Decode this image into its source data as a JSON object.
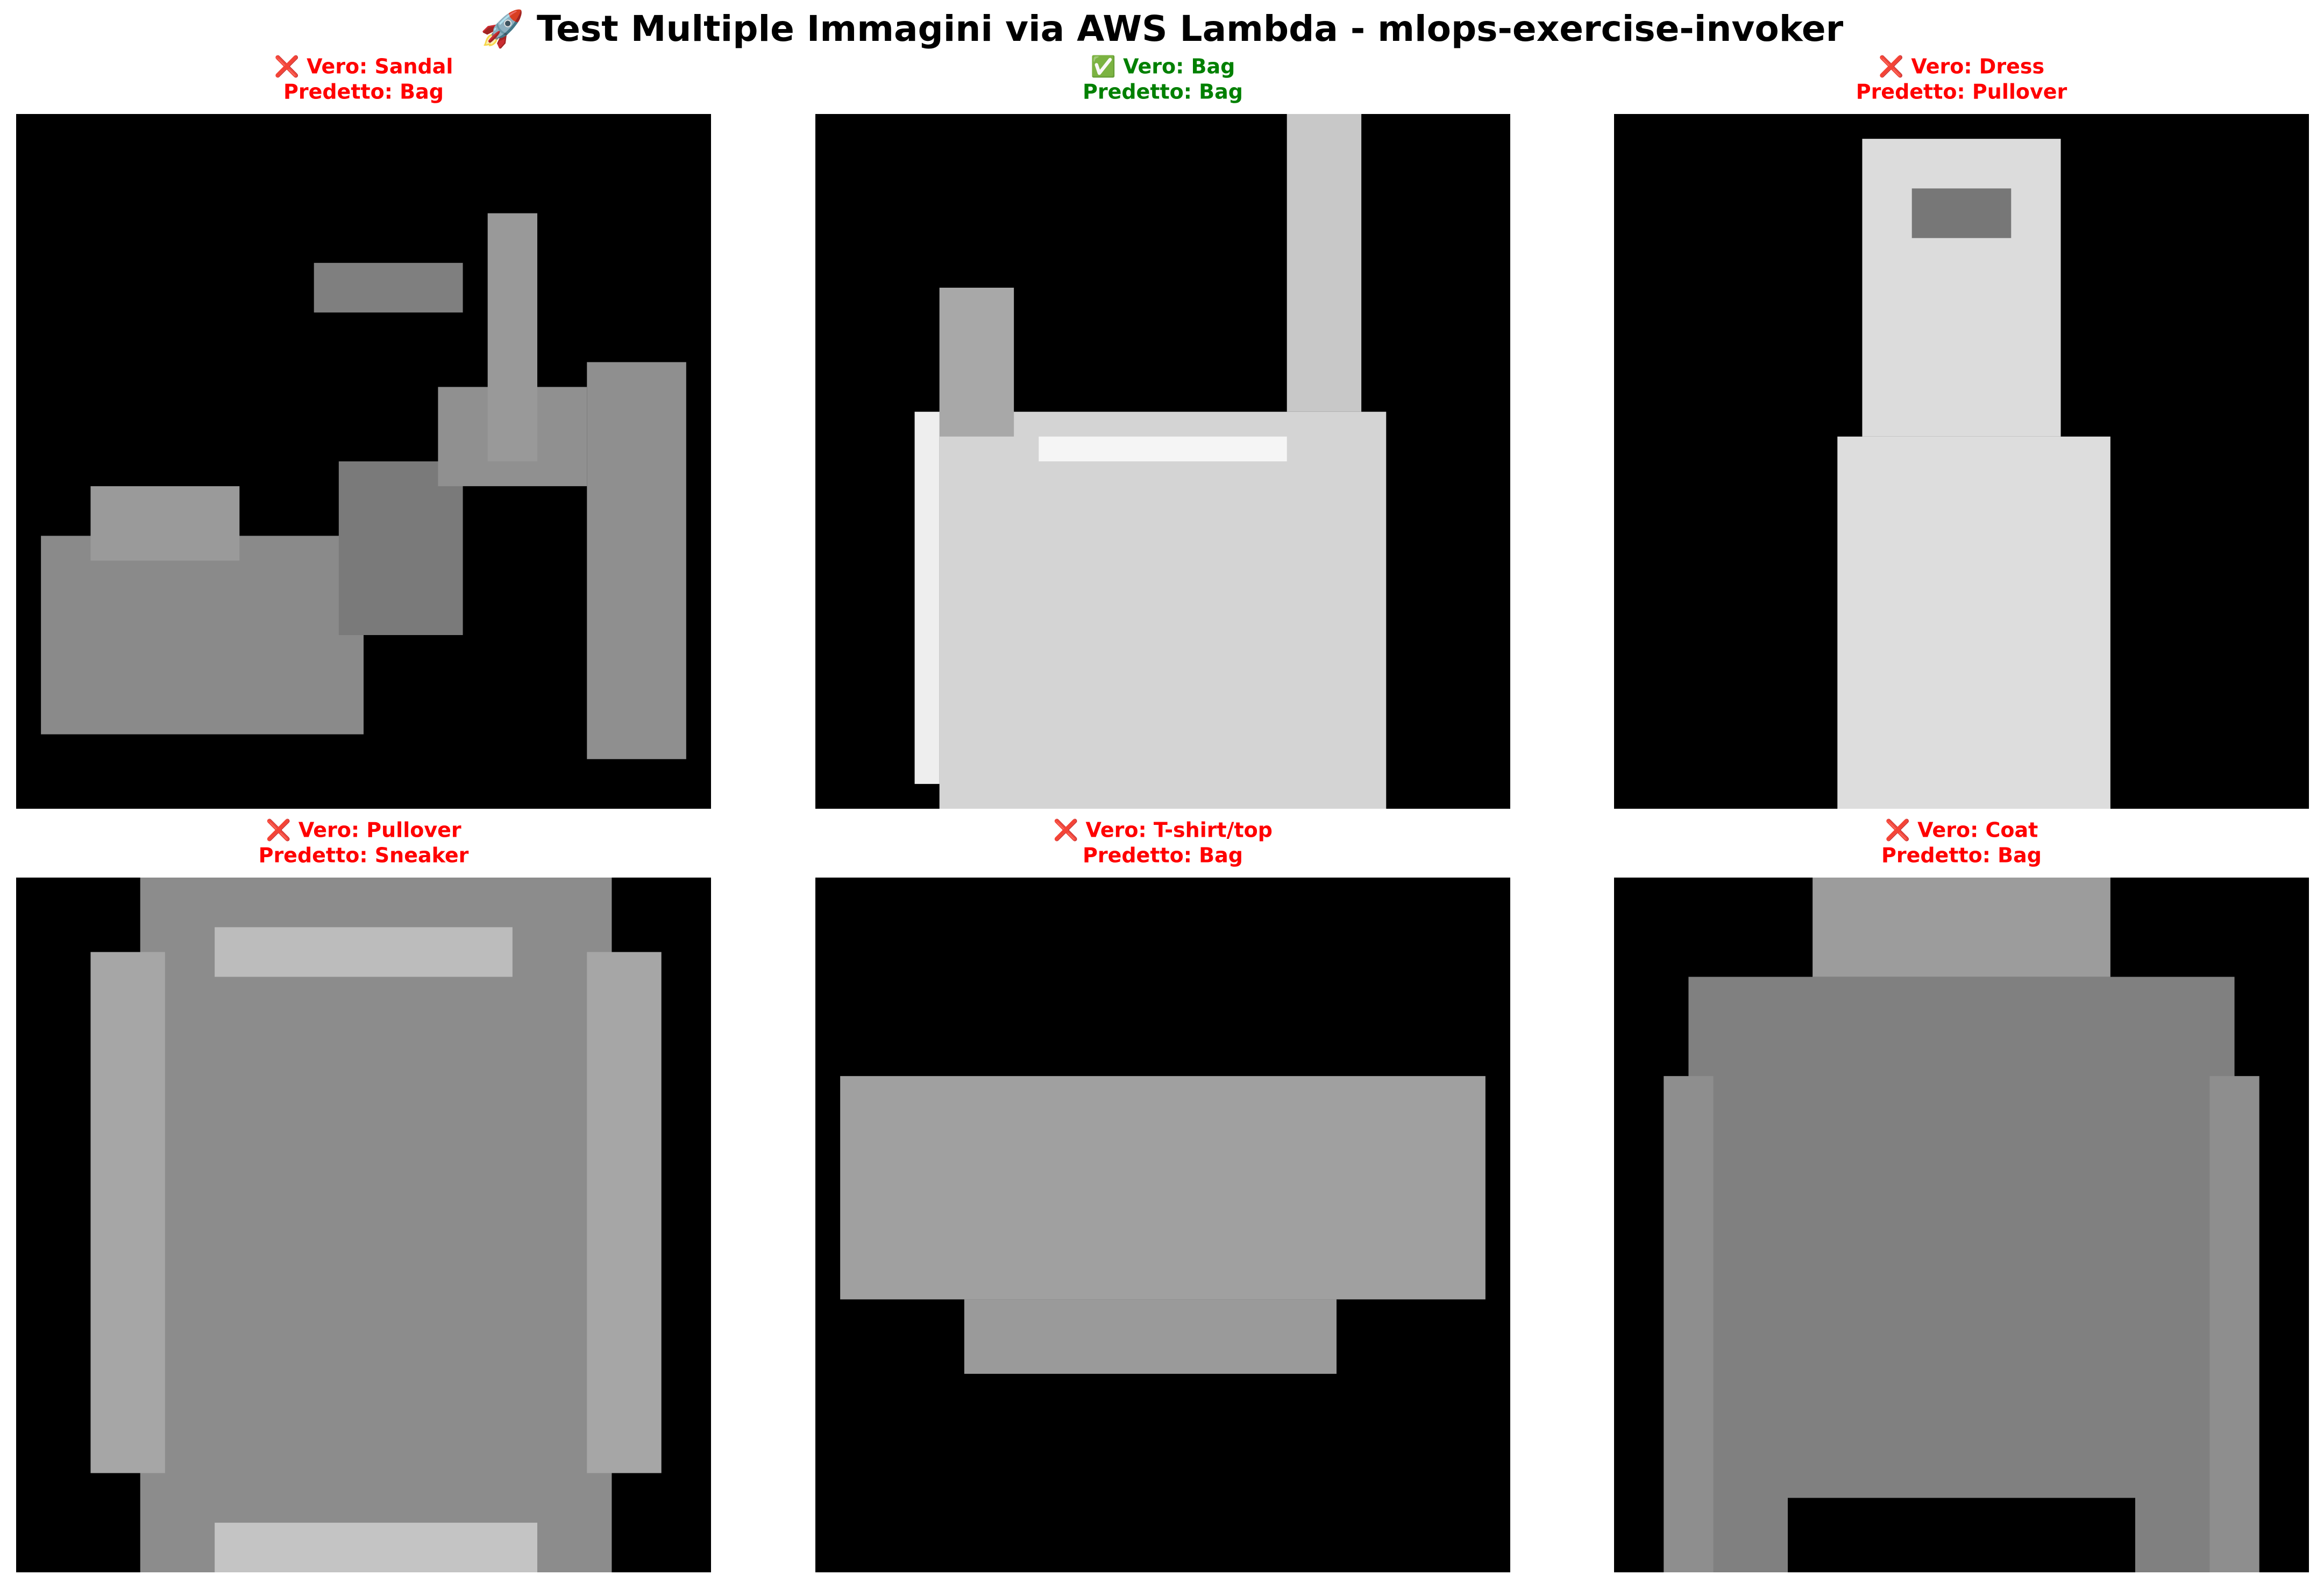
{
  "title": "🚀 Test Multiple Immagini via AWS Lambda - mlops-exercise-invoker",
  "panels": [
    {
      "line1": "❌ Vero: Sandal",
      "line2": "Predetto: Bag",
      "color": "#ff0000"
    },
    {
      "line1": "✅ Vero: Bag",
      "line2": "Predetto: Bag",
      "color": "#008000"
    },
    {
      "line1": "❌ Vero: Dress",
      "line2": "Predetto: Pullover",
      "color": "#ff0000"
    },
    {
      "line1": "❌ Vero: Pullover",
      "line2": "Predetto: Sneaker",
      "color": "#ff0000"
    },
    {
      "line1": "❌ Vero: T-shirt/top",
      "line2": "Predetto: Bag",
      "color": "#ff0000"
    },
    {
      "line1": "❌ Vero: Coat",
      "line2": "Predetto: Bag",
      "color": "#ff0000"
    }
  ]
}
